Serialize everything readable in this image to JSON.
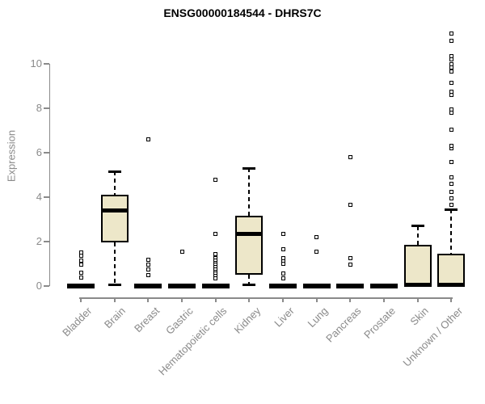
{
  "chart_data": {
    "type": "boxplot",
    "title": "ENSG00000184544 - DHRS7C",
    "ylabel": "Expression",
    "xlabel": "",
    "ylim": [
      0,
      11.5
    ],
    "yticks": [
      0,
      2,
      4,
      6,
      8,
      10
    ],
    "grid": false,
    "legend": "none",
    "categories": [
      "Bladder",
      "Brain",
      "Breast",
      "Gastric",
      "Hematopoietic cells",
      "Kidney",
      "Liver",
      "Lung",
      "Pancreas",
      "Prostate",
      "Skin",
      "Unknown / Other"
    ],
    "series": [
      {
        "category": "Bladder",
        "low": 0,
        "q1": 0,
        "median": 0,
        "q3": 0,
        "high": 0,
        "outliers": [
          1.5,
          1.35,
          1.15,
          0.95,
          0.6,
          0.4
        ]
      },
      {
        "category": "Brain",
        "low": 0.05,
        "q1": 1.95,
        "median": 3.4,
        "q3": 4.1,
        "high": 5.15,
        "outliers": []
      },
      {
        "category": "Breast",
        "low": 0,
        "q1": 0,
        "median": 0,
        "q3": 0,
        "high": 0,
        "outliers": [
          6.6,
          1.2,
          0.95,
          0.75,
          0.5
        ]
      },
      {
        "category": "Gastric",
        "low": 0,
        "q1": 0,
        "median": 0,
        "q3": 0,
        "high": 0,
        "outliers": [
          1.55
        ]
      },
      {
        "category": "Hematopoietic cells",
        "low": 0,
        "q1": 0,
        "median": 0,
        "q3": 0,
        "high": 0,
        "outliers": [
          4.8,
          2.35,
          1.45,
          1.25,
          1.15,
          1.05,
          0.95,
          0.85,
          0.75,
          0.65,
          0.55,
          0.45,
          0.35
        ]
      },
      {
        "category": "Kidney",
        "low": 0.05,
        "q1": 0.5,
        "median": 2.35,
        "q3": 3.15,
        "high": 5.3,
        "outliers": []
      },
      {
        "category": "Liver",
        "low": 0,
        "q1": 0,
        "median": 0,
        "q3": 0,
        "high": 0,
        "outliers": [
          2.35,
          1.65,
          1.25,
          1.1,
          1.0,
          0.55,
          0.35
        ]
      },
      {
        "category": "Lung",
        "low": 0,
        "q1": 0,
        "median": 0,
        "q3": 0,
        "high": 0,
        "outliers": [
          2.2,
          1.55
        ]
      },
      {
        "category": "Pancreas",
        "low": 0,
        "q1": 0,
        "median": 0,
        "q3": 0,
        "high": 0,
        "outliers": [
          5.8,
          3.65,
          1.25,
          0.95
        ]
      },
      {
        "category": "Prostate",
        "low": 0,
        "q1": 0,
        "median": 0,
        "q3": 0,
        "high": 0,
        "outliers": []
      },
      {
        "category": "Skin",
        "low": 0,
        "q1": 0,
        "median": 0.05,
        "q3": 1.85,
        "high": 2.7,
        "outliers": []
      },
      {
        "category": "Unknown / Other",
        "low": 0,
        "q1": 0,
        "median": 0.07,
        "q3": 1.45,
        "high": 3.45,
        "outliers": [
          3.65,
          3.95,
          4.25,
          4.6,
          4.9,
          5.6,
          6.2,
          6.3,
          7.05,
          7.8,
          7.95,
          8.6,
          8.75,
          9.15,
          9.65,
          9.85,
          10.0,
          10.2,
          10.35,
          11.05,
          11.35
        ]
      }
    ],
    "colors": {
      "box_fill": "#EDE7C9",
      "box_border": "#000000",
      "median": "#000000",
      "axis": "#8A8A8A",
      "title": "#000000",
      "background": "#FFFFFF"
    }
  }
}
